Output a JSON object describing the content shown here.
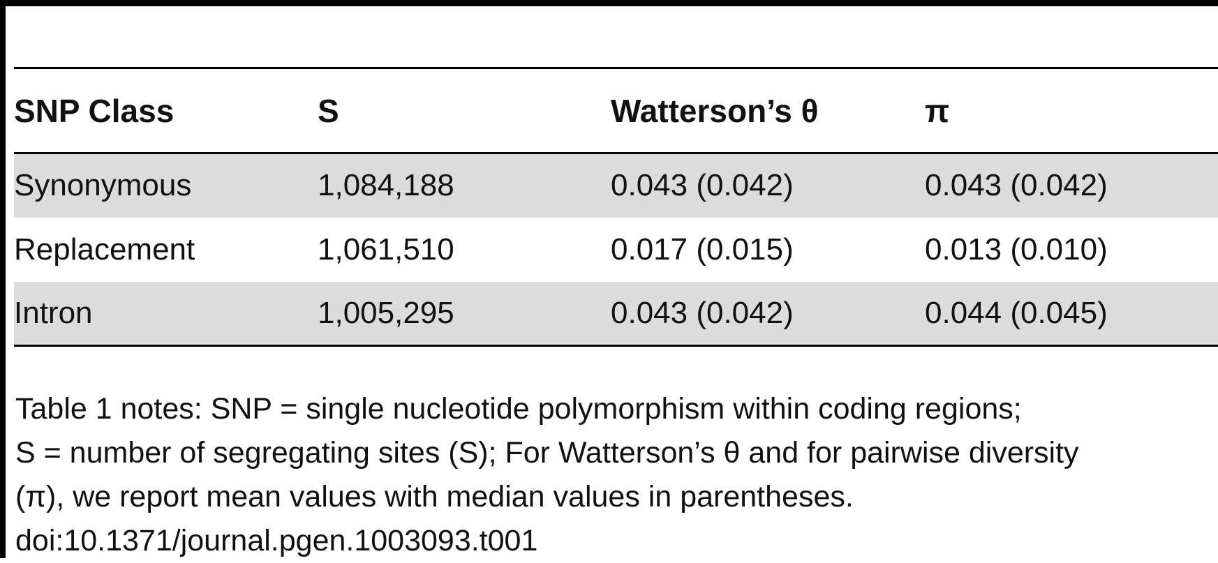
{
  "table": {
    "headers": [
      "SNP Class",
      "S",
      "Watterson’s θ",
      "π"
    ],
    "rows": [
      [
        "Synonymous",
        "1,084,188",
        "0.043 (0.042)",
        "0.043 (0.042)"
      ],
      [
        "Replacement",
        "1,061,510",
        "0.017 (0.015)",
        "0.013 (0.010)"
      ],
      [
        "Intron",
        "1,005,295",
        "0.043 (0.042)",
        "0.044 (0.045)"
      ]
    ]
  },
  "notes": {
    "line1": "Table 1 notes: SNP = single nucleotide polymorphism within coding regions;",
    "line2": "S = number of segregating sites (S); For Watterson’s θ and for pairwise diversity",
    "line3": "(π), we report mean values with median values in parentheses.",
    "doi": "doi:10.1371/journal.pgen.1003093.t001"
  }
}
